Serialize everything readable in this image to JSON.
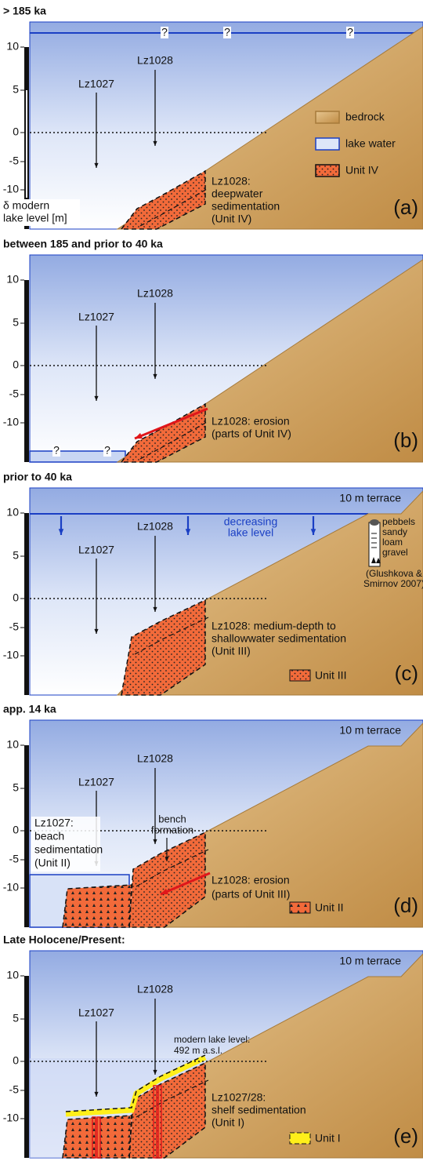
{
  "panels": [
    {
      "title": "> 185 ka",
      "label": "(a)",
      "y_ticks": [
        "10",
        "5",
        "0",
        "-5",
        "-10"
      ],
      "cores": [
        "Lz1027",
        "Lz1028"
      ],
      "question_marks": [
        "?",
        "?",
        "?"
      ],
      "axis_title": [
        "δ modern",
        "lake level [m]"
      ],
      "legend": [
        "bedrock",
        "lake water",
        "Unit IV"
      ],
      "annotation": [
        "Lz1028:",
        "deepwater",
        "sedimentation",
        "(Unit IV)"
      ]
    },
    {
      "title": "between 185 and prior to 40 ka",
      "label": "(b)",
      "y_ticks": [
        "10",
        "5",
        "0",
        "-5",
        "-10"
      ],
      "cores": [
        "Lz1027",
        "Lz1028"
      ],
      "question_marks": [
        "?",
        "?"
      ],
      "annotation": [
        "Lz1028: erosion",
        "(parts of Unit IV)"
      ]
    },
    {
      "title": "prior to 40 ka",
      "label": "(c)",
      "y_ticks": [
        "10",
        "5",
        "0",
        "-5",
        "-10"
      ],
      "cores": [
        "Lz1027",
        "Lz1028"
      ],
      "terrace": "10 m terrace",
      "decreasing": [
        "decreasing",
        "lake level"
      ],
      "column": [
        "pebbels",
        "sandy",
        "loam",
        "gravel"
      ],
      "citation": [
        "(Glushkova &",
        "Smirnov 2007)"
      ],
      "legend": [
        "Unit III"
      ],
      "annotation": [
        "Lz1028: medium-depth to",
        "shallowwater sedimentation",
        "(Unit III)"
      ]
    },
    {
      "title": "app. 14 ka",
      "label": "(d)",
      "y_ticks": [
        "10",
        "5",
        "0",
        "-5",
        "-10"
      ],
      "cores": [
        "Lz1027",
        "Lz1028"
      ],
      "terrace": "10 m terrace",
      "bench": [
        "bench",
        "formation"
      ],
      "left_annotation": [
        "Lz1027:",
        "beach",
        "sedimentation",
        "(Unit II)"
      ],
      "legend": [
        "Unit II"
      ],
      "annotation": [
        "Lz1028: erosion",
        "(parts of Unit III)"
      ]
    },
    {
      "title": "Late Holocene/Present:",
      "label": "(e)",
      "y_ticks": [
        "10",
        "5",
        "0",
        "-5",
        "-10"
      ],
      "cores": [
        "Lz1027",
        "Lz1028"
      ],
      "terrace": "10 m terrace",
      "lake_note": [
        "modern lake level:",
        "492 m a.s.l."
      ],
      "legend": [
        "Unit I"
      ],
      "annotation": [
        "Lz1027/28:",
        "shelf sedimentation",
        "(Unit I)"
      ]
    }
  ]
}
